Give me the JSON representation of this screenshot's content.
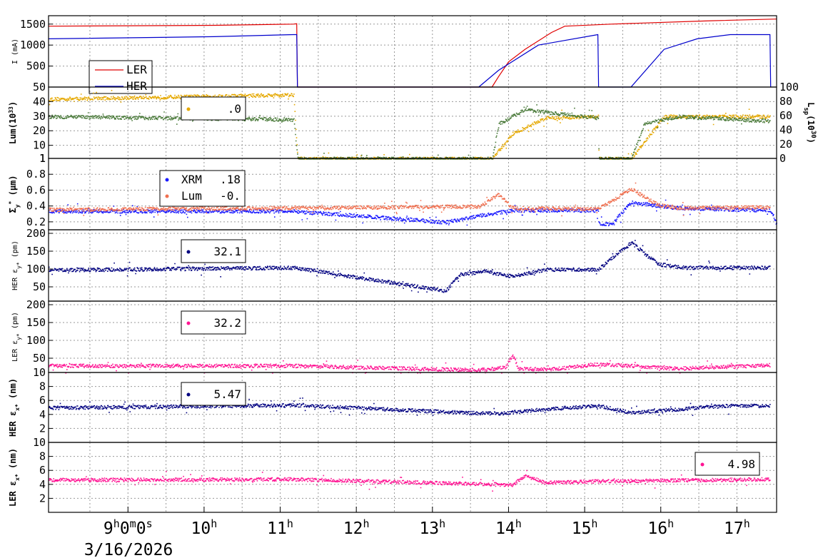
{
  "chart_data": [
    {
      "type": "line",
      "ylabel": "I (mA)",
      "yticks": [
        500,
        1000,
        1500
      ],
      "ylim": [
        0,
        1700
      ],
      "legend": [
        {
          "name": "LER",
          "color": "#e00000"
        },
        {
          "name": "HER",
          "color": "#0000cc"
        }
      ],
      "series": [
        {
          "name": "LER",
          "color": "#e00000",
          "points": [
            [
              0,
              1450
            ],
            [
              2.5,
              1470
            ],
            [
              3.7,
              1500
            ],
            [
              3.75,
              1510
            ],
            [
              3.76,
              0
            ],
            [
              6.7,
              0
            ],
            [
              6.8,
              250
            ],
            [
              6.95,
              600
            ],
            [
              7.2,
              900
            ],
            [
              7.6,
              1300
            ],
            [
              7.8,
              1450
            ],
            [
              8.5,
              1500
            ],
            [
              10,
              1580
            ],
            [
              11,
              1620
            ]
          ]
        },
        {
          "name": "HER",
          "color": "#0000cc",
          "points": [
            [
              0,
              1150
            ],
            [
              2.5,
              1200
            ],
            [
              3.7,
              1250
            ],
            [
              3.75,
              1250
            ],
            [
              3.76,
              0
            ],
            [
              6.5,
              0
            ],
            [
              6.8,
              400
            ],
            [
              7.4,
              1000
            ],
            [
              8.3,
              1250
            ],
            [
              8.31,
              0
            ],
            [
              8.8,
              0
            ],
            [
              9.3,
              900
            ],
            [
              9.8,
              1150
            ],
            [
              10.3,
              1250
            ],
            [
              10.9,
              1250
            ],
            [
              10.91,
              0
            ]
          ]
        }
      ]
    },
    {
      "type": "scatter",
      "ylabel": "Lum(10",
      "ylabel_sup": "33",
      "ylabel_end": ")",
      "yticks": [
        1,
        10,
        20,
        30,
        40,
        50
      ],
      "ylim": [
        1,
        50
      ],
      "y2label": "L",
      "y2label_sub": "sp",
      "y2label_mid": "(10",
      "y2label_sup": "30",
      "y2label_end": ")",
      "y2ticks": [
        0,
        20,
        40,
        60,
        80,
        100
      ],
      "legend": [
        {
          "name": "",
          "value": ".0",
          "color": "#e5a800"
        }
      ],
      "series": [
        {
          "name": "",
          "color": "#e5a800",
          "points": [
            [
              0,
              42
            ],
            [
              3.7,
              45
            ],
            [
              3.76,
              1
            ],
            [
              6.7,
              1
            ],
            [
              7.0,
              18
            ],
            [
              7.5,
              29
            ],
            [
              8.3,
              30
            ],
            [
              8.31,
              1
            ],
            [
              8.8,
              1
            ],
            [
              9.3,
              30
            ],
            [
              10.9,
              30
            ]
          ]
        },
        {
          "name": "",
          "color": "#4a7a3a",
          "points": [
            [
              0,
              30
            ],
            [
              3.7,
              28
            ],
            [
              3.76,
              1
            ],
            [
              6.7,
              1
            ],
            [
              6.8,
              25
            ],
            [
              7.2,
              35
            ],
            [
              7.5,
              33
            ],
            [
              8.3,
              29
            ],
            [
              8.31,
              1
            ],
            [
              8.8,
              1
            ],
            [
              9.0,
              25
            ],
            [
              9.5,
              30
            ],
            [
              10.9,
              27
            ]
          ]
        }
      ]
    },
    {
      "type": "scatter",
      "ylabel": "Σ",
      "ylabel_sub": "y",
      "ylabel_sup": "*",
      "ylabel_end": " (μm)",
      "yticks": [
        0.2,
        0.4,
        0.6,
        0.8,
        1
      ],
      "ylim": [
        0.1,
        1
      ],
      "legend": [
        {
          "name": "XRM",
          "value": ".18",
          "color": "#1a1aff"
        },
        {
          "name": "Lum",
          "value": "-0.",
          "color": "#f07050"
        }
      ],
      "series": [
        {
          "name": "XRM",
          "color": "#1a1aff",
          "points": [
            [
              0,
              0.34
            ],
            [
              3.7,
              0.34
            ],
            [
              6.0,
              0.2
            ],
            [
              6.5,
              0.28
            ],
            [
              7.0,
              0.35
            ],
            [
              8.3,
              0.35
            ],
            [
              8.31,
              0.18
            ],
            [
              8.5,
              0.18
            ],
            [
              8.8,
              0.45
            ],
            [
              9.5,
              0.38
            ],
            [
              10.9,
              0.35
            ],
            [
              11,
              0.17
            ]
          ]
        },
        {
          "name": "Lum",
          "color": "#f07050",
          "points": [
            [
              0,
              0.36
            ],
            [
              3.7,
              0.38
            ],
            [
              6.5,
              0.4
            ],
            [
              6.8,
              0.55
            ],
            [
              7.0,
              0.38
            ],
            [
              8.3,
              0.37
            ],
            [
              8.8,
              0.62
            ],
            [
              9.2,
              0.42
            ],
            [
              9.5,
              0.38
            ],
            [
              10.9,
              0.39
            ]
          ]
        }
      ]
    },
    {
      "type": "scatter",
      "ylabel": "HER ε",
      "ylabel_sub": "y*",
      "ylabel_end": " (pm)",
      "yticks": [
        50,
        100,
        150,
        200
      ],
      "ylim": [
        10,
        210
      ],
      "legend": [
        {
          "name": "",
          "value": "32.1",
          "color": "#000080"
        }
      ],
      "series": [
        {
          "name": "",
          "color": "#000080",
          "points": [
            [
              0,
              98
            ],
            [
              3.7,
              105
            ],
            [
              6.0,
              40
            ],
            [
              6.2,
              85
            ],
            [
              6.6,
              95
            ],
            [
              7.0,
              80
            ],
            [
              7.5,
              100
            ],
            [
              8.3,
              100
            ],
            [
              8.8,
              175
            ],
            [
              9.2,
              115
            ],
            [
              9.6,
              105
            ],
            [
              10.9,
              105
            ]
          ]
        }
      ]
    },
    {
      "type": "scatter",
      "ylabel": "LER ε",
      "ylabel_sub": "y*",
      "ylabel_end": " (pm)",
      "yticks": [
        10,
        50,
        100,
        150,
        200
      ],
      "ylim": [
        10,
        210
      ],
      "legend": [
        {
          "name": "",
          "value": "32.2",
          "color": "#ff1493"
        }
      ],
      "series": [
        {
          "name": "",
          "color": "#ff1493",
          "points": [
            [
              0,
              30
            ],
            [
              3.7,
              30
            ],
            [
              6.4,
              18
            ],
            [
              6.6,
              20
            ],
            [
              6.9,
              25
            ],
            [
              7.0,
              60
            ],
            [
              7.1,
              22
            ],
            [
              7.6,
              20
            ],
            [
              8.3,
              35
            ],
            [
              9.5,
              22
            ],
            [
              10.9,
              32
            ]
          ]
        }
      ]
    },
    {
      "type": "scatter",
      "ylabel": "HER ε",
      "ylabel_sub": "x*",
      "ylabel_end": " (nm)",
      "yticks": [
        2,
        4,
        6,
        8
      ],
      "ylim": [
        0,
        10
      ],
      "legend": [
        {
          "name": "",
          "value": "5.47",
          "color": "#000080"
        }
      ],
      "series": [
        {
          "name": "",
          "color": "#000080",
          "points": [
            [
              0,
              5
            ],
            [
              3.7,
              5.4
            ],
            [
              6.3,
              4.3
            ],
            [
              6.8,
              4.2
            ],
            [
              7.5,
              4.8
            ],
            [
              8.3,
              5.3
            ],
            [
              8.8,
              4.3
            ],
            [
              9.5,
              4.8
            ],
            [
              10.2,
              5.3
            ],
            [
              10.9,
              5.3
            ]
          ]
        }
      ]
    },
    {
      "type": "scatter",
      "ylabel": "LER ε",
      "ylabel_sub": "x*",
      "ylabel_end": " (nm)",
      "yticks": [
        2,
        4,
        6,
        8,
        10
      ],
      "ylim": [
        0,
        10
      ],
      "legend": [
        {
          "name": "",
          "value": "4.98",
          "color": "#ff1493"
        }
      ],
      "series": [
        {
          "name": "",
          "color": "#ff1493",
          "points": [
            [
              0,
              4.7
            ],
            [
              3.7,
              4.8
            ],
            [
              7.0,
              4.0
            ],
            [
              7.2,
              5.3
            ],
            [
              7.5,
              4.3
            ],
            [
              8.3,
              4.5
            ],
            [
              10.9,
              4.8
            ]
          ]
        }
      ]
    }
  ],
  "x_axis": {
    "xlim": [
      0,
      11
    ],
    "ticks": [
      {
        "pos": 1.2,
        "hour": "9",
        "sup1": "h",
        "minute": "0",
        "sup2": "m",
        "second": "0",
        "sup3": "s"
      },
      {
        "pos": 2.35,
        "hour": "10",
        "sup1": "h"
      },
      {
        "pos": 3.5,
        "hour": "11",
        "sup1": "h"
      },
      {
        "pos": 4.65,
        "hour": "12",
        "sup1": "h"
      },
      {
        "pos": 5.8,
        "hour": "13",
        "sup1": "h"
      },
      {
        "pos": 6.95,
        "hour": "14",
        "sup1": "h"
      },
      {
        "pos": 8.1,
        "hour": "15",
        "sup1": "h"
      },
      {
        "pos": 9.25,
        "hour": "16",
        "sup1": "h"
      },
      {
        "pos": 10.4,
        "hour": "17",
        "sup1": "h"
      }
    ],
    "date": "3/16/2026"
  }
}
